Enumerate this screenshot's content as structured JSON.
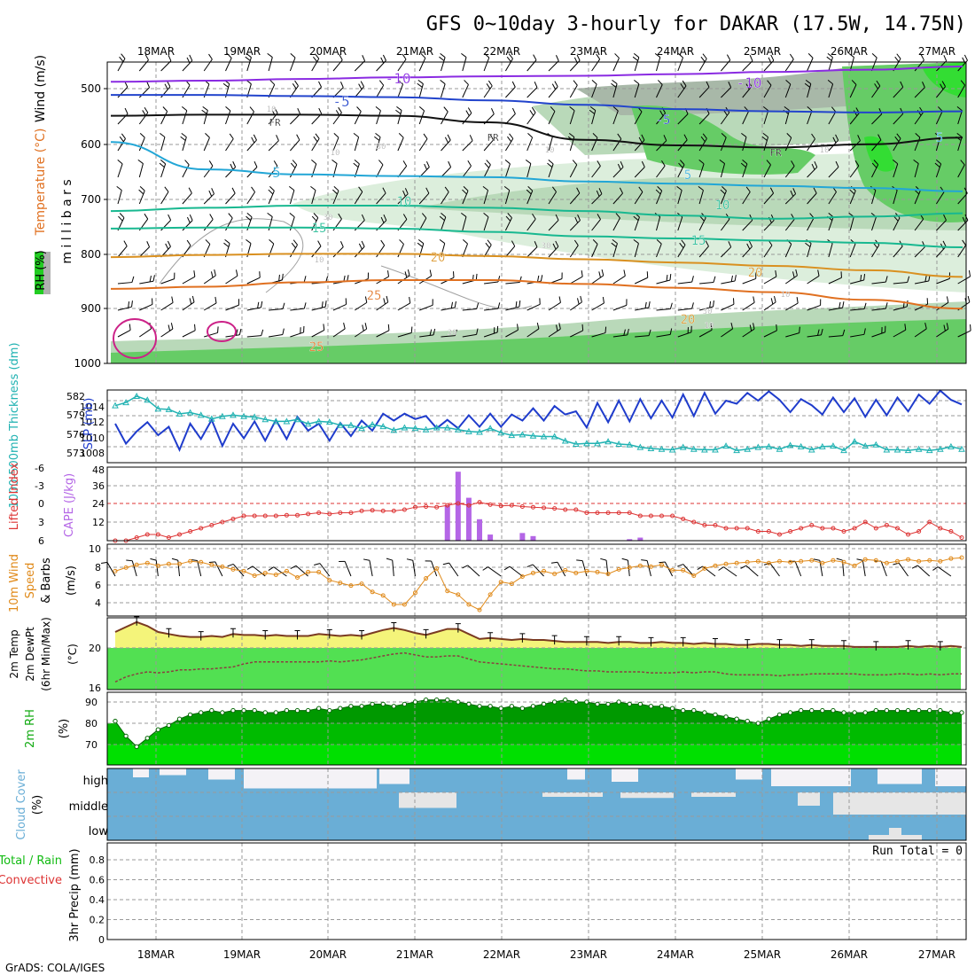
{
  "title": "GFS 0~10day 3-hourly for DAKAR (17.5W, 14.75N)",
  "footer": "GrADS: COLA/IGES",
  "dates": [
    "18MAR",
    "19MAR",
    "20MAR",
    "21MAR",
    "22MAR",
    "23MAR",
    "24MAR",
    "25MAR",
    "26MAR",
    "27MAR"
  ],
  "colors": {
    "rh_light": "#dceedc",
    "rh_mid": "#b9d9b9",
    "rh_grey": "#a8b8a8",
    "rh_green": "#66cc66",
    "rh_bright": "#33dd33",
    "wind_barb": "#000000",
    "temp_purple": "#8a2be2",
    "temp_blue": "#2244cc",
    "temp_cyan": "#22a6d6",
    "temp_teal": "#18b890",
    "temp_orange": "#d99020",
    "temp_orange2": "#e07020",
    "magenta": "#cc2288",
    "slp": "#1f3ccc",
    "thickness": "#20b2b2",
    "li": "#dd3333",
    "cape": "#b466e6",
    "wind10": "#e08a1a",
    "temp_fill": "#f4f47a",
    "temp_line": "#7a3a22",
    "dew_fill": "#52e052",
    "dew_line": "#8a4040",
    "rh_fill_dark": "#009900",
    "rh_fill_mid": "#00bb00",
    "rh_fill_light": "#00e000",
    "cloud_blue": "#6aaed6",
    "cloud_white": "#f4f2f6",
    "cloud_grey": "#e6e6e6"
  },
  "chart_data": [
    {
      "panel": "upper-air",
      "type": "heatmap",
      "ylabel_parts": [
        "RH (%)",
        "Temperature (°C)",
        "Wind (m/s)"
      ],
      "ylabel_unit": "m i l l i b a r s",
      "yticks": [
        "500",
        "600",
        "700",
        "800",
        "900",
        "1000"
      ],
      "ylim": [
        1000,
        450
      ],
      "contour_labels": [
        "-10",
        "-10",
        "-5",
        "-5",
        "FR",
        "FR",
        "FR",
        "5",
        "5",
        "5",
        "10",
        "10",
        "15",
        "15",
        "20",
        "20",
        "20",
        "25",
        "25",
        "10",
        "10",
        "10",
        "30",
        "30",
        "10",
        "10",
        "30",
        "30",
        "10",
        "10",
        "30",
        "0"
      ],
      "isotherms": [
        {
          "label": "-10",
          "color": "#8a2be2",
          "p": [
            486,
            484,
            481,
            478,
            476,
            475,
            472,
            468,
            464,
            458
          ]
        },
        {
          "label": "-5",
          "color": "#2244cc",
          "p": [
            510,
            510,
            512,
            514,
            520,
            528,
            536,
            540,
            542,
            540
          ]
        },
        {
          "label": "FR",
          "color": "#111111",
          "p": [
            548,
            546,
            546,
            548,
            560,
            592,
            602,
            606,
            600,
            588
          ]
        },
        {
          "label": "5",
          "color": "#22a6d6",
          "p": [
            596,
            646,
            655,
            658,
            660,
            668,
            672,
            676,
            680,
            686
          ]
        },
        {
          "label": "10",
          "color": "#18b890",
          "p": [
            722,
            716,
            712,
            712,
            716,
            722,
            730,
            736,
            732,
            726
          ]
        },
        {
          "label": "15",
          "color": "#18b890",
          "p": [
            754,
            752,
            752,
            754,
            760,
            768,
            772,
            776,
            780,
            788
          ]
        },
        {
          "label": "20",
          "color": "#d99020",
          "p": [
            806,
            802,
            800,
            800,
            804,
            810,
            816,
            822,
            830,
            842
          ]
        },
        {
          "label": "25",
          "color": "#e07020",
          "p": [
            864,
            860,
            852,
            848,
            848,
            855,
            862,
            870,
            884,
            900
          ]
        }
      ]
    },
    {
      "panel": "slp-thickness",
      "type": "line",
      "ylabel_left": "1000-500mb Thickness (dm)",
      "ylabel_right": "SLP (mb)",
      "yticks_thickness": [
        "582",
        "579",
        "576",
        "573"
      ],
      "yticks_slp": [
        "1014",
        "1012",
        "1010",
        "1008"
      ],
      "series": [
        {
          "name": "SLP (mb)",
          "values": [
            1011,
            1008.4,
            1010,
            1011.2,
            1009.5,
            1010.6,
            1007.6,
            1011,
            1009,
            1011.5,
            1008.1,
            1011,
            1009.1,
            1011.3,
            1008.8,
            1011.5,
            1009,
            1011.9,
            1010.1,
            1011,
            1008.8,
            1011.1,
            1009.4,
            1011.4,
            1010.1,
            1012.3,
            1011.4,
            1012.3,
            1011.6,
            1012,
            1010.4,
            1011.5,
            1010.4,
            1012.1,
            1010.6,
            1012.3,
            1010.6,
            1012.2,
            1011.4,
            1013,
            1011.4,
            1013.3,
            1012.2,
            1012.6,
            1010.5,
            1013.7,
            1011.2,
            1014,
            1011.3,
            1014.2,
            1011.7,
            1014,
            1011.8,
            1014.8,
            1012,
            1015,
            1012.3,
            1014,
            1013.6,
            1015,
            1014,
            1015.2,
            1014.1,
            1012.5,
            1014.2,
            1013.4,
            1012.2,
            1014.4,
            1012.5,
            1014.3,
            1011.9,
            1014.1,
            1012.1,
            1014.4,
            1012.6,
            1014.8,
            1013.6,
            1015.3,
            1014.1,
            1013.5
          ]
        },
        {
          "name": "1000-500mb Thickness (dm)",
          "values": [
            580.5,
            581,
            582,
            581.4,
            580,
            579.9,
            579.2,
            579.4,
            579,
            578.4,
            578.8,
            579,
            578.8,
            578.7,
            578.3,
            578,
            578,
            578.3,
            577.6,
            578,
            577.9,
            577.4,
            577.4,
            576.9,
            577.5,
            577.2,
            576.6,
            577,
            576.9,
            576.7,
            577,
            577,
            576.7,
            576.4,
            576.3,
            576.9,
            576.2,
            575.8,
            575.9,
            575.7,
            575.6,
            575.6,
            574.9,
            574.4,
            574.5,
            574.5,
            574.8,
            574.4,
            574.3,
            573.9,
            573.7,
            573.6,
            573.5,
            573.9,
            573.6,
            573.5,
            573.5,
            574.1,
            573.4,
            573.6,
            573.9,
            574,
            573.6,
            574.2,
            574,
            573.5,
            574,
            574.1,
            573.4,
            574.8,
            574.1,
            574.3,
            573.5,
            573.5,
            573.4,
            573.6,
            573.4,
            573.6,
            574,
            573.6
          ]
        }
      ]
    },
    {
      "panel": "li-cape",
      "type": "bar",
      "ylabel_left": "Lifted Index",
      "ylabel_right": "CAPE (J/kg)",
      "yticks_li": [
        "-6",
        "-3",
        "0",
        "3",
        "6"
      ],
      "yticks_cape": [
        "48",
        "36",
        "24",
        "12"
      ],
      "series": [
        {
          "name": "Lifted Index",
          "values": [
            6,
            6,
            5.5,
            5,
            5,
            5.5,
            5,
            4.5,
            4,
            3.5,
            3,
            2.5,
            2,
            2,
            2,
            2,
            1.9,
            1.9,
            1.7,
            1.5,
            1.7,
            1.5,
            1.5,
            1.2,
            1.1,
            1.2,
            1.2,
            1,
            0.6,
            0.5,
            0.6,
            0.3,
            0,
            0.3,
            -0.2,
            0.2,
            0.4,
            0.3,
            0.5,
            0.6,
            0.7,
            0.8,
            1,
            1,
            1.5,
            1.5,
            1.5,
            1.5,
            1.5,
            2,
            2,
            2,
            2,
            2.5,
            3,
            3.5,
            3.5,
            4,
            4,
            4,
            4.5,
            4.5,
            5,
            4.5,
            4,
            3.5,
            4,
            4,
            4.5,
            4,
            3,
            4,
            3.5,
            4,
            5,
            4.5,
            3,
            4,
            4.5,
            5.5
          ]
        },
        {
          "name": "CAPE (J/kg)",
          "values": [
            0,
            0,
            0,
            0,
            0,
            0,
            0,
            0,
            0,
            0,
            0,
            0,
            0,
            0,
            0,
            0,
            0,
            0,
            0,
            0,
            0,
            0,
            0,
            0,
            0,
            0,
            0,
            0,
            0,
            0,
            0,
            23,
            45,
            28,
            14,
            4,
            0,
            0,
            5,
            3,
            0,
            0,
            0,
            0,
            0,
            0,
            0,
            0,
            1,
            2,
            0,
            0,
            0,
            0,
            0,
            0,
            0,
            0,
            0,
            0,
            0,
            0,
            0,
            0,
            0,
            0,
            0,
            0,
            0,
            0,
            0,
            0,
            0,
            0,
            0,
            0,
            0,
            0,
            0,
            0
          ]
        }
      ]
    },
    {
      "panel": "wind10m",
      "type": "line",
      "ylabel": "10m Wind Speed & Barbs (m/s)",
      "yticks": [
        "10",
        "8",
        "6",
        "4"
      ],
      "series": [
        {
          "name": "10m Wind Speed (m/s)",
          "values": [
            7.5,
            7.9,
            8.2,
            8.4,
            8.1,
            8.3,
            8.3,
            8.6,
            8.5,
            8.2,
            8,
            7.7,
            7.5,
            7,
            7.3,
            7.1,
            7.5,
            6.8,
            7.4,
            7.4,
            6.5,
            6.2,
            5.9,
            6.1,
            5.2,
            4.8,
            3.8,
            3.8,
            5.1,
            6.7,
            7.8,
            5.3,
            4.9,
            3.8,
            3.2,
            4.9,
            6.3,
            6.1,
            6.9,
            7.3,
            7.5,
            7.2,
            7.6,
            7.3,
            7.5,
            7.4,
            7.2,
            7.7,
            7.9,
            8.1,
            8,
            8.2,
            7.6,
            7.6,
            7,
            7.8,
            8.1,
            8.3,
            8.4,
            8.5,
            8.6,
            8.4,
            8.6,
            8.5,
            8.6,
            8.7,
            8.4,
            8.7,
            8.5,
            8.1,
            8.8,
            8.7,
            8.4,
            8.6,
            8.8,
            8.6,
            8.7,
            8.6,
            8.9,
            9
          ]
        }
      ]
    },
    {
      "panel": "temperature",
      "type": "area",
      "ylabel": "2m Temp 2m DewPt (6hr Min/Max) (°C)",
      "yticks": [
        "20",
        "16"
      ],
      "series": [
        {
          "name": "2m Temp",
          "values": [
            21.6,
            22.1,
            22.6,
            22.2,
            21.6,
            21.4,
            21.2,
            21.1,
            21.1,
            21.2,
            21.1,
            21.4,
            21.3,
            21.3,
            21.2,
            21.3,
            21.2,
            21.2,
            21.2,
            21.4,
            21.3,
            21.2,
            21.3,
            21.2,
            21.5,
            21.8,
            22,
            21.8,
            21.5,
            21.3,
            21.6,
            21.9,
            21.9,
            21.4,
            20.9,
            21,
            20.9,
            20.8,
            20.9,
            20.8,
            20.8,
            20.7,
            20.6,
            20.6,
            20.6,
            20.6,
            20.5,
            20.6,
            20.6,
            20.5,
            20.5,
            20.6,
            20.5,
            20.5,
            20.4,
            20.5,
            20.4,
            20.4,
            20.3,
            20.3,
            20.4,
            20.4,
            20.3,
            20.3,
            20.2,
            20.3,
            20.2,
            20.2,
            20.2,
            20.1,
            20.1,
            20.1,
            20.1,
            20.1,
            20.2,
            20.1,
            20.2,
            20.1,
            20.2,
            20.1
          ]
        },
        {
          "name": "2m DewPt",
          "values": [
            16.6,
            17.1,
            17.4,
            17.6,
            17.5,
            17.6,
            17.8,
            17.8,
            17.9,
            17.9,
            18,
            18.1,
            18.4,
            18.6,
            18.6,
            18.6,
            18.6,
            18.6,
            18.6,
            18.6,
            18.7,
            18.6,
            18.7,
            18.8,
            19,
            19.2,
            19.4,
            19.5,
            19.3,
            19.1,
            19.1,
            19.2,
            19.2,
            18.9,
            18.6,
            18.5,
            18.4,
            18.3,
            18.2,
            18.1,
            18,
            17.9,
            17.9,
            17.8,
            17.7,
            17.7,
            17.6,
            17.6,
            17.6,
            17.6,
            17.5,
            17.5,
            17.5,
            17.6,
            17.5,
            17.6,
            17.6,
            17.4,
            17.3,
            17.3,
            17.3,
            17.3,
            17.2,
            17.3,
            17.3,
            17.4,
            17.4,
            17.4,
            17.4,
            17.4,
            17.3,
            17.3,
            17.3,
            17.4,
            17.4,
            17.3,
            17.4,
            17.3,
            17.4,
            17.4
          ]
        }
      ]
    },
    {
      "panel": "rh2m",
      "type": "area",
      "ylabel": "2m RH (%)",
      "yticks": [
        "90",
        "80",
        "70"
      ],
      "series": [
        {
          "name": "2m RH (%)",
          "values": [
            81,
            74,
            69,
            73,
            77,
            79,
            82,
            84,
            85,
            86,
            85,
            86,
            86,
            86,
            85,
            85,
            86,
            86,
            86,
            87,
            86,
            87,
            88,
            88,
            89,
            89,
            88,
            89,
            90,
            91,
            91,
            91,
            90,
            89,
            88,
            88,
            87,
            88,
            87,
            88,
            89,
            90,
            91,
            90,
            90,
            89,
            89,
            90,
            89,
            89,
            88,
            88,
            87,
            86,
            86,
            85,
            84,
            83,
            82,
            81,
            80,
            82,
            84,
            85,
            86,
            86,
            86,
            86,
            85,
            85,
            85,
            86,
            86,
            86,
            86,
            86,
            86,
            86,
            85,
            85
          ]
        }
      ]
    },
    {
      "panel": "cloud",
      "type": "heatmap",
      "ylabel": "Cloud Cover (%)",
      "rows": [
        "high",
        "middle",
        "low"
      ]
    },
    {
      "panel": "precip",
      "type": "bar",
      "ylabel_left_a": "Total / Rain",
      "ylabel_left_b": "Convective",
      "ylabel": "3hr Precip (mm)",
      "yticks": [
        "0.8",
        "0.6",
        "0.4",
        "0.2",
        "0"
      ],
      "ylim": [
        0,
        0.9
      ],
      "annotation": "Run Total = 0",
      "values": []
    }
  ]
}
